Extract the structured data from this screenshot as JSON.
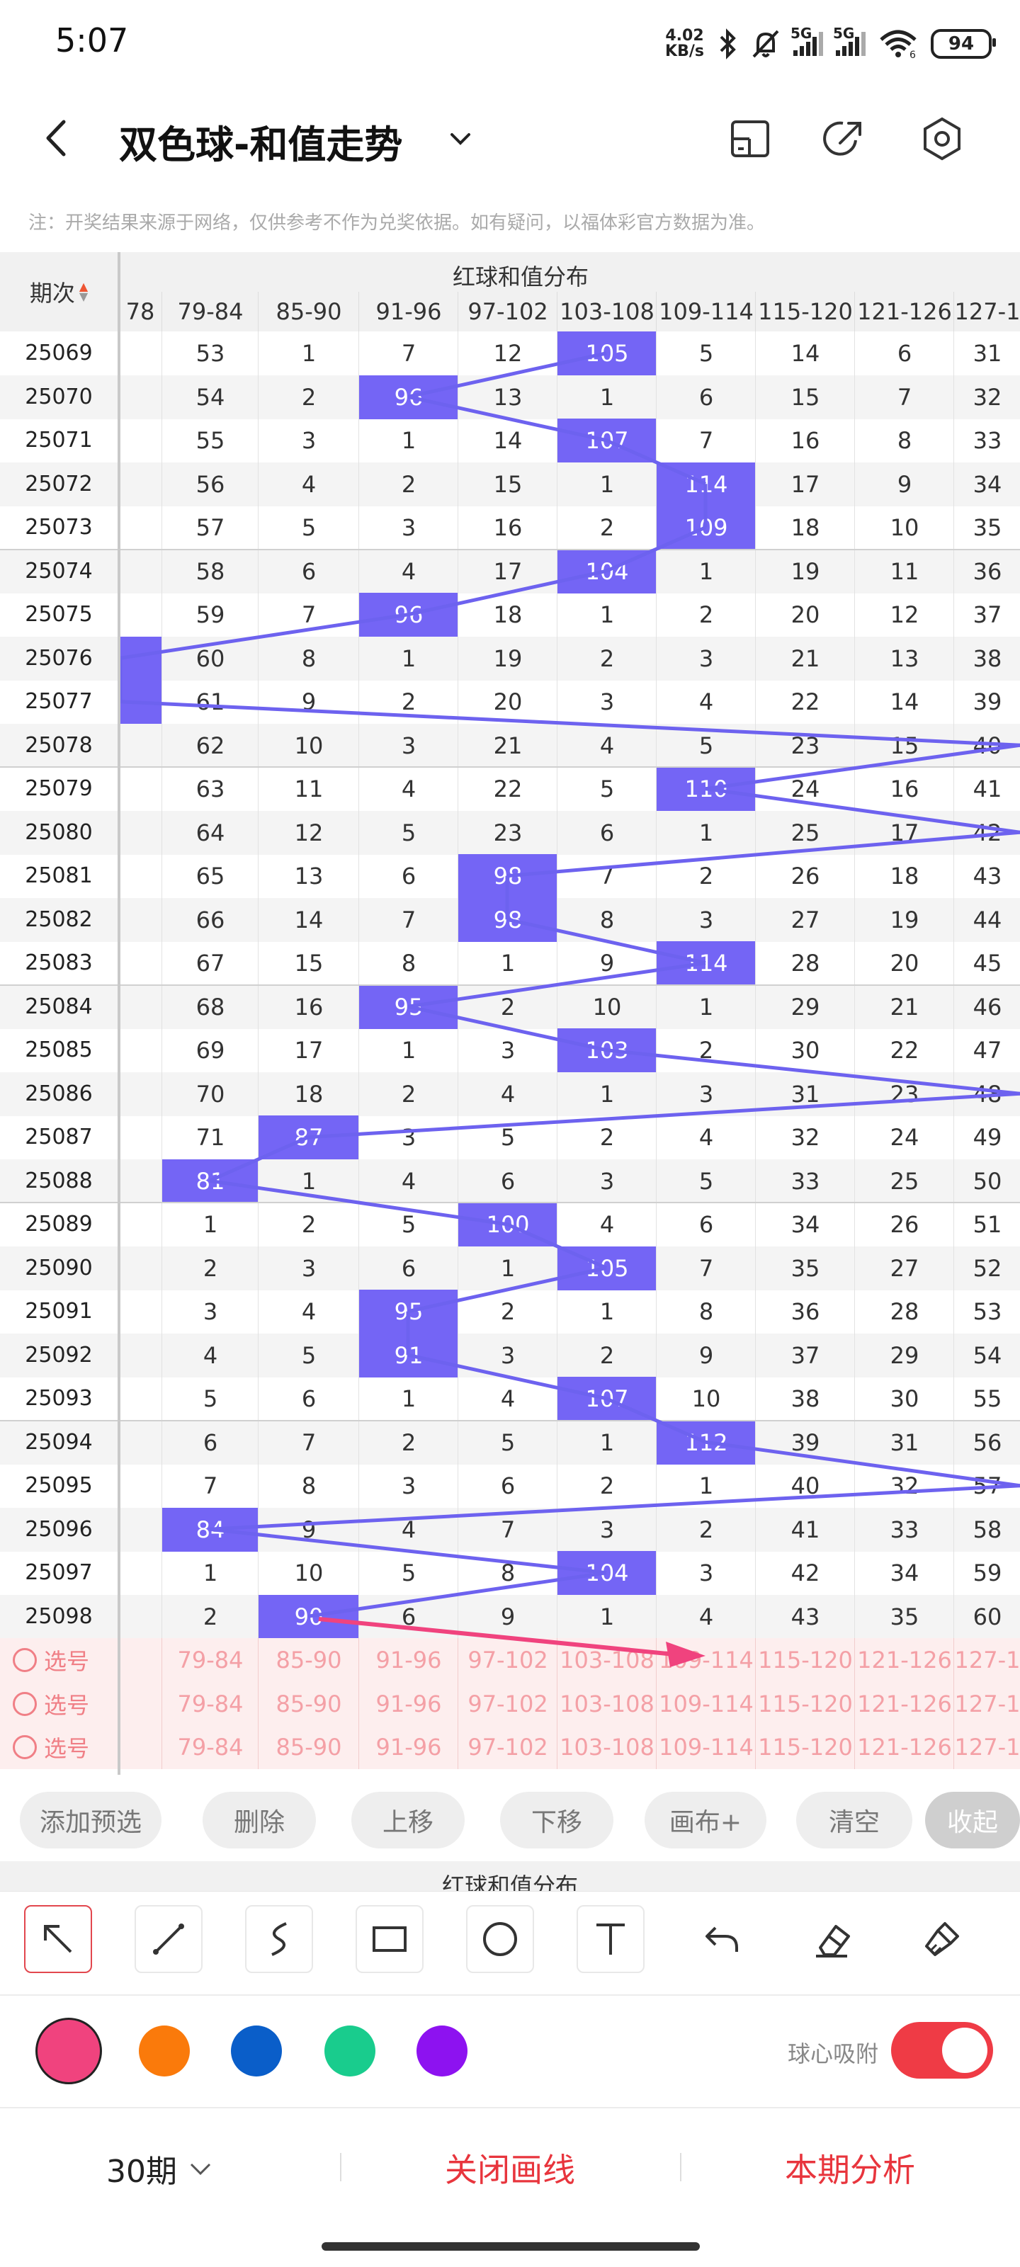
{
  "status_bar": {
    "time": "5:07",
    "net_speed_value": "4.02",
    "net_speed_unit": "KB/s",
    "signal_1": "5G",
    "signal_2": "5G",
    "wifi_sub": "6",
    "battery": "94"
  },
  "header": {
    "title": "双色球-和值走势",
    "icons": [
      "back-icon",
      "chevron-down-icon",
      "phone-layout-icon",
      "share-icon",
      "settings-icon"
    ]
  },
  "notice": "注：开奖结果来源于网络，仅供参考不作为兑奖依据。如有疑问，以福体彩官方数据为准。",
  "grid": {
    "group_title": "红球和值分布",
    "period_header": "期次",
    "columns": [
      "78",
      "79-84",
      "85-90",
      "91-96",
      "97-102",
      "103-108",
      "109-114",
      "115-120",
      "121-126",
      "127-1"
    ],
    "rows": [
      {
        "period": "25069",
        "cells": [
          "",
          "53",
          "1",
          "7",
          "12",
          "105",
          "5",
          "14",
          "6",
          "31"
        ],
        "hit": 5
      },
      {
        "period": "25070",
        "cells": [
          "",
          "54",
          "2",
          "96",
          "13",
          "1",
          "6",
          "15",
          "7",
          "32"
        ],
        "hit": 3
      },
      {
        "period": "25071",
        "cells": [
          "",
          "55",
          "3",
          "1",
          "14",
          "107",
          "7",
          "16",
          "8",
          "33"
        ],
        "hit": 5
      },
      {
        "period": "25072",
        "cells": [
          "",
          "56",
          "4",
          "2",
          "15",
          "1",
          "114",
          "17",
          "9",
          "34"
        ],
        "hit": 6
      },
      {
        "period": "25073",
        "cells": [
          "",
          "57",
          "5",
          "3",
          "16",
          "2",
          "109",
          "18",
          "10",
          "35"
        ],
        "hit": 6
      },
      {
        "period": "25074",
        "cells": [
          "",
          "58",
          "6",
          "4",
          "17",
          "104",
          "1",
          "19",
          "11",
          "36"
        ],
        "hit": 5
      },
      {
        "period": "25075",
        "cells": [
          "",
          "59",
          "7",
          "96",
          "18",
          "1",
          "2",
          "20",
          "12",
          "37"
        ],
        "hit": 3
      },
      {
        "period": "25076",
        "cells": [
          "",
          "60",
          "8",
          "1",
          "19",
          "2",
          "3",
          "21",
          "13",
          "38"
        ],
        "hit": 0
      },
      {
        "period": "25077",
        "cells": [
          "",
          "61",
          "9",
          "2",
          "20",
          "3",
          "4",
          "22",
          "14",
          "39"
        ],
        "hit": 0
      },
      {
        "period": "25078",
        "cells": [
          "",
          "62",
          "10",
          "3",
          "21",
          "4",
          "5",
          "23",
          "15",
          "40"
        ],
        "hit": -1
      },
      {
        "period": "25079",
        "cells": [
          "",
          "63",
          "11",
          "4",
          "22",
          "5",
          "110",
          "24",
          "16",
          "41"
        ],
        "hit": 6
      },
      {
        "period": "25080",
        "cells": [
          "",
          "64",
          "12",
          "5",
          "23",
          "6",
          "1",
          "25",
          "17",
          "42"
        ],
        "hit": -1
      },
      {
        "period": "25081",
        "cells": [
          "",
          "65",
          "13",
          "6",
          "98",
          "7",
          "2",
          "26",
          "18",
          "43"
        ],
        "hit": 4
      },
      {
        "period": "25082",
        "cells": [
          "",
          "66",
          "14",
          "7",
          "98",
          "8",
          "3",
          "27",
          "19",
          "44"
        ],
        "hit": 4
      },
      {
        "period": "25083",
        "cells": [
          "",
          "67",
          "15",
          "8",
          "1",
          "9",
          "114",
          "28",
          "20",
          "45"
        ],
        "hit": 6
      },
      {
        "period": "25084",
        "cells": [
          "",
          "68",
          "16",
          "95",
          "2",
          "10",
          "1",
          "29",
          "21",
          "46"
        ],
        "hit": 3
      },
      {
        "period": "25085",
        "cells": [
          "",
          "69",
          "17",
          "1",
          "3",
          "103",
          "2",
          "30",
          "22",
          "47"
        ],
        "hit": 5
      },
      {
        "period": "25086",
        "cells": [
          "",
          "70",
          "18",
          "2",
          "4",
          "1",
          "3",
          "31",
          "23",
          "48"
        ],
        "hit": -1
      },
      {
        "period": "25087",
        "cells": [
          "",
          "71",
          "87",
          "3",
          "5",
          "2",
          "4",
          "32",
          "24",
          "49"
        ],
        "hit": 2
      },
      {
        "period": "25088",
        "cells": [
          "",
          "81",
          "1",
          "4",
          "6",
          "3",
          "5",
          "33",
          "25",
          "50"
        ],
        "hit": 1
      },
      {
        "period": "25089",
        "cells": [
          "",
          "1",
          "2",
          "5",
          "100",
          "4",
          "6",
          "34",
          "26",
          "51"
        ],
        "hit": 4
      },
      {
        "period": "25090",
        "cells": [
          "",
          "2",
          "3",
          "6",
          "1",
          "105",
          "7",
          "35",
          "27",
          "52"
        ],
        "hit": 5
      },
      {
        "period": "25091",
        "cells": [
          "",
          "3",
          "4",
          "95",
          "2",
          "1",
          "8",
          "36",
          "28",
          "53"
        ],
        "hit": 3
      },
      {
        "period": "25092",
        "cells": [
          "",
          "4",
          "5",
          "91",
          "3",
          "2",
          "9",
          "37",
          "29",
          "54"
        ],
        "hit": 3
      },
      {
        "period": "25093",
        "cells": [
          "",
          "5",
          "6",
          "1",
          "4",
          "107",
          "10",
          "38",
          "30",
          "55"
        ],
        "hit": 5
      },
      {
        "period": "25094",
        "cells": [
          "",
          "6",
          "7",
          "2",
          "5",
          "1",
          "112",
          "39",
          "31",
          "56"
        ],
        "hit": 6
      },
      {
        "period": "25095",
        "cells": [
          "",
          "7",
          "8",
          "3",
          "6",
          "2",
          "1",
          "40",
          "32",
          "57"
        ],
        "hit": -1
      },
      {
        "period": "25096",
        "cells": [
          "",
          "84",
          "9",
          "4",
          "7",
          "3",
          "2",
          "41",
          "33",
          "58"
        ],
        "hit": 1
      },
      {
        "period": "25097",
        "cells": [
          "",
          "1",
          "10",
          "5",
          "8",
          "104",
          "3",
          "42",
          "34",
          "59"
        ],
        "hit": 5
      },
      {
        "period": "25098",
        "cells": [
          "",
          "2",
          "90",
          "6",
          "9",
          "1",
          "4",
          "43",
          "35",
          "60"
        ],
        "hit": 2
      }
    ],
    "select_label": "选号",
    "select_rows": 3
  },
  "actions": [
    "添加预选",
    "删除",
    "上移",
    "下移",
    "画布+",
    "清空",
    "收起"
  ],
  "drawing": {
    "tools": [
      "arrow-tool-icon",
      "line-tool-icon",
      "curve-tool-icon",
      "rectangle-tool-icon",
      "circle-tool-icon",
      "text-tool-icon",
      "undo-icon",
      "eraser-icon",
      "clear-brush-icon"
    ],
    "colors": [
      "#f0437e",
      "#fa7a0b",
      "#0a5ec9",
      "#19cc8d",
      "#8d12f0"
    ],
    "selected_color": "#f0437e",
    "line_color": "#6d62ef",
    "snap_label": "球心吸附",
    "snap_on": true
  },
  "bottom": {
    "period_count": "30期",
    "close_lines": "关闭画线",
    "analysis": "本期分析"
  }
}
